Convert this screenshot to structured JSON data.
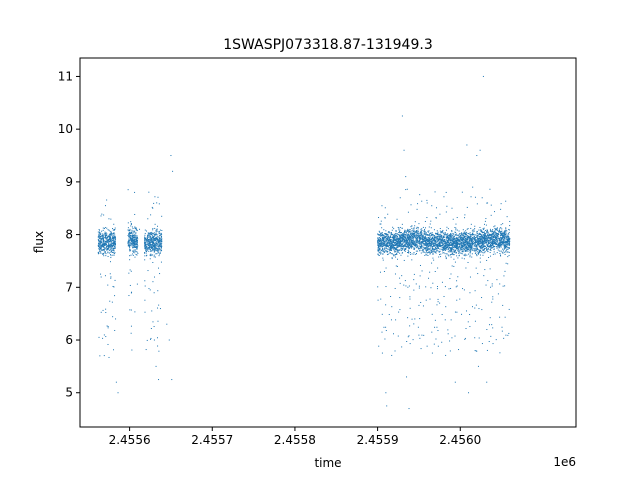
{
  "chart_data": {
    "type": "scatter",
    "title": "1SWASPJ073318.87-131949.3",
    "xlabel": "time",
    "ylabel": "flux",
    "x_offset_label": "1e6",
    "xlim": [
      2455540,
      2456140
    ],
    "ylim": [
      4.35,
      11.35
    ],
    "x_ticks": [
      2455600,
      2455700,
      2455800,
      2455900,
      2456000
    ],
    "x_tick_labels": [
      "2.4556",
      "2.4557",
      "2.4558",
      "2.4559",
      "2.4560"
    ],
    "y_ticks": [
      5,
      6,
      7,
      8,
      9,
      10,
      11
    ],
    "y_tick_labels": [
      "5",
      "6",
      "7",
      "8",
      "9",
      "10",
      "11"
    ],
    "grid": false,
    "marker_color": "#1f77b4",
    "observing_segments": [
      {
        "x_start": 2455562,
        "x_end": 2455583,
        "median": 7.85
      },
      {
        "x_start": 2455598,
        "x_end": 2455610,
        "median": 7.9
      },
      {
        "x_start": 2455618,
        "x_end": 2455639,
        "median": 7.85
      },
      {
        "x_start": 2455900,
        "x_end": 2455926,
        "median": 7.85
      },
      {
        "x_start": 2455926,
        "x_end": 2455958,
        "median": 7.9
      },
      {
        "x_start": 2455958,
        "x_end": 2455995,
        "median": 7.85
      },
      {
        "x_start": 2455995,
        "x_end": 2456025,
        "median": 7.85
      },
      {
        "x_start": 2456025,
        "x_end": 2456060,
        "median": 7.9
      }
    ],
    "sample_points": [
      [
        2455568,
        7.95
      ],
      [
        2455575,
        8.3
      ],
      [
        2455580,
        7.7
      ],
      [
        2455583,
        6.4
      ],
      [
        2455584,
        5.2
      ],
      [
        2455586,
        5.0
      ],
      [
        2455563,
        6.05
      ],
      [
        2455564,
        5.7
      ],
      [
        2455600,
        7.6
      ],
      [
        2455606,
        8.8
      ],
      [
        2455612,
        8.1
      ],
      [
        2455622,
        8.3
      ],
      [
        2455628,
        8.5
      ],
      [
        2455630,
        6.0
      ],
      [
        2455632,
        5.5
      ],
      [
        2455635,
        5.25
      ],
      [
        2455645,
        6.3
      ],
      [
        2455648,
        6.0
      ],
      [
        2455650,
        9.5
      ],
      [
        2455652,
        9.2
      ],
      [
        2455651,
        5.25
      ],
      [
        2455903,
        8.2
      ],
      [
        2455910,
        5.0
      ],
      [
        2455911,
        4.75
      ],
      [
        2455930,
        10.25
      ],
      [
        2455932,
        9.6
      ],
      [
        2455934,
        9.1
      ],
      [
        2455935,
        5.3
      ],
      [
        2455938,
        4.7
      ],
      [
        2455945,
        6.4
      ],
      [
        2455960,
        8.6
      ],
      [
        2455975,
        6.7
      ],
      [
        2455983,
        8.8
      ],
      [
        2455990,
        8.5
      ],
      [
        2455994,
        5.2
      ],
      [
        2455997,
        7.2
      ],
      [
        2456008,
        9.7
      ],
      [
        2456010,
        5.0
      ],
      [
        2456015,
        8.9
      ],
      [
        2456018,
        5.8
      ],
      [
        2456020,
        9.5
      ],
      [
        2456022,
        5.5
      ],
      [
        2456024,
        9.6
      ],
      [
        2456028,
        11.0
      ],
      [
        2456032,
        5.2
      ],
      [
        2456033,
        8.6
      ]
    ]
  }
}
